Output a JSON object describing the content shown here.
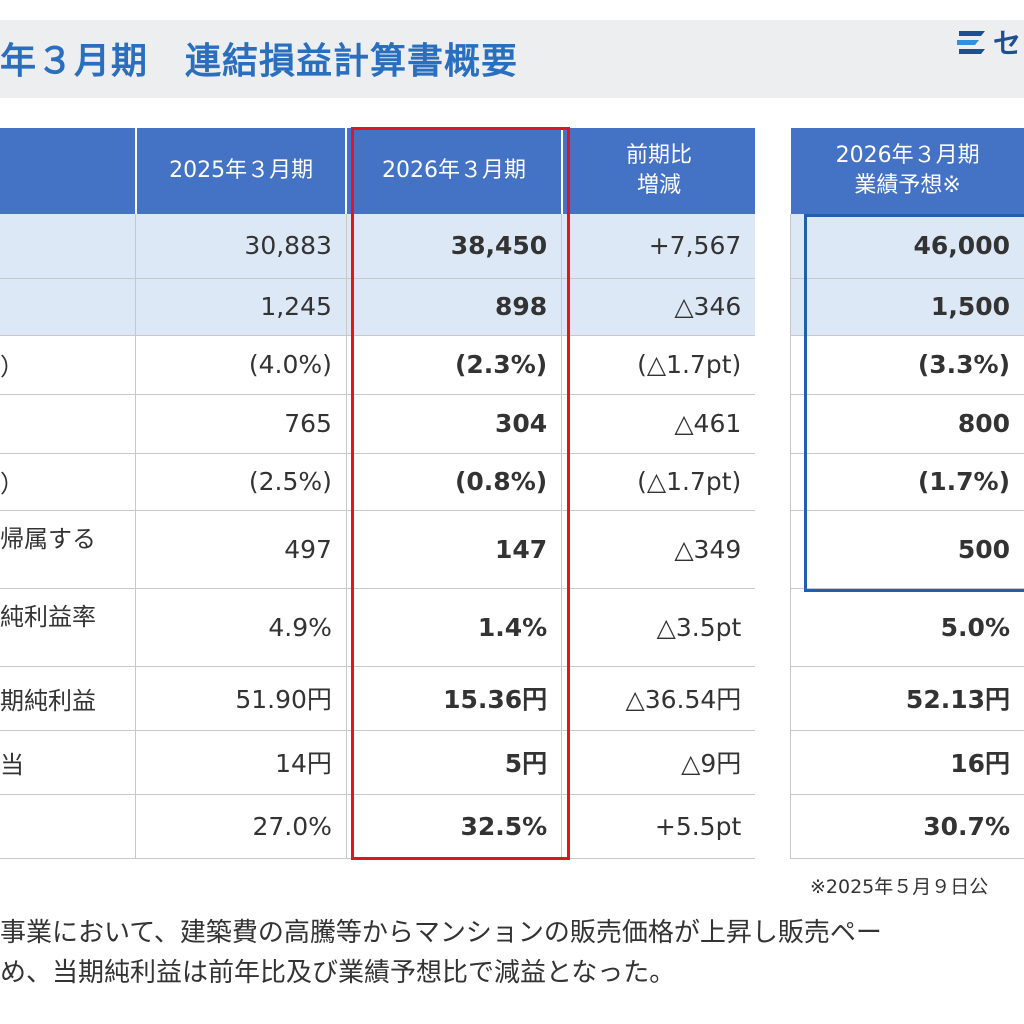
{
  "header": {
    "title": "年３月期　連結損益計算書概要",
    "logo_text": "セ"
  },
  "table": {
    "columns": [
      "",
      "2025年３月期",
      "2026年３月期",
      "前期比\n増減",
      "2026年３月期\n業績予想※"
    ],
    "rows": [
      {
        "label": "",
        "fy2025": "30,883",
        "fy2026": "38,450",
        "change": "+7,567",
        "forecast": "46,000",
        "shaded": true
      },
      {
        "label": "",
        "fy2025": "1,245",
        "fy2026": "898",
        "change": "△346",
        "forecast": "1,500",
        "shaded": true
      },
      {
        "label": "）",
        "fy2025": "(4.0%)",
        "fy2026": "(2.3%)",
        "change": "(△1.7pt)",
        "forecast": "(3.3%)",
        "shaded": false
      },
      {
        "label": "",
        "fy2025": "765",
        "fy2026": "304",
        "change": "△461",
        "forecast": "800",
        "shaded": false
      },
      {
        "label": "）",
        "fy2025": "(2.5%)",
        "fy2026": "(0.8%)",
        "change": "(△1.7pt)",
        "forecast": "(1.7%)",
        "shaded": false
      },
      {
        "label": "帰属する",
        "fy2025": "497",
        "fy2026": "147",
        "change": "△349",
        "forecast": "500",
        "shaded": false
      },
      {
        "label": "純利益率",
        "fy2025": "4.9%",
        "fy2026": "1.4%",
        "change": "△3.5pt",
        "forecast": "5.0%",
        "shaded": false
      },
      {
        "label": "期純利益",
        "fy2025": "51.90円",
        "fy2026": "15.36円",
        "change": "△36.54円",
        "forecast": "52.13円",
        "shaded": false
      },
      {
        "label": "当",
        "fy2025": "14円",
        "fy2026": "5円",
        "change": "△9円",
        "forecast": "16円",
        "shaded": false
      },
      {
        "label": "",
        "fy2025": "27.0%",
        "fy2026": "32.5%",
        "change": "+5.5pt",
        "forecast": "30.7%",
        "shaded": false
      }
    ]
  },
  "footnote": "※2025年５月９日公",
  "comment": {
    "line1": "事業において、建築費の高騰等からマンションの販売価格が上昇し販売ペー",
    "line2": "め、当期純利益は前年比及び業績予想比で減益となった。"
  },
  "colors": {
    "header_blue": "#4472c4",
    "shaded_row": "#dde8f6",
    "highlight_red": "#e0161e",
    "forecast_blue": "#1f5fb0",
    "title_blue": "#2a6fbf"
  }
}
